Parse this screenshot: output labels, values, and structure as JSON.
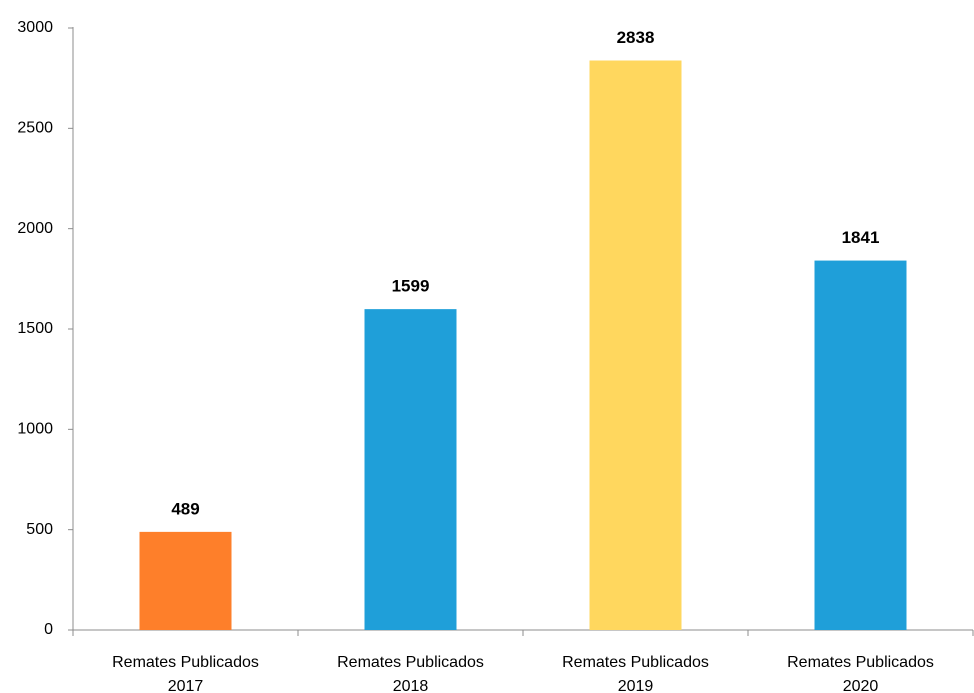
{
  "chart_data": {
    "type": "bar",
    "categories": [
      "Remates Publicados 2017",
      "Remates Publicados 2018",
      "Remates Publicados 2019",
      "Remates Publicados 2020"
    ],
    "values": [
      489,
      1599,
      2838,
      1841
    ],
    "colors": [
      "#fe7f2a",
      "#1f9fd9",
      "#ffd75e",
      "#1f9fd9"
    ],
    "ylim": [
      0,
      3000
    ],
    "yticks": [
      0,
      500,
      1000,
      1500,
      2000,
      2500,
      3000
    ],
    "grid": false
  }
}
